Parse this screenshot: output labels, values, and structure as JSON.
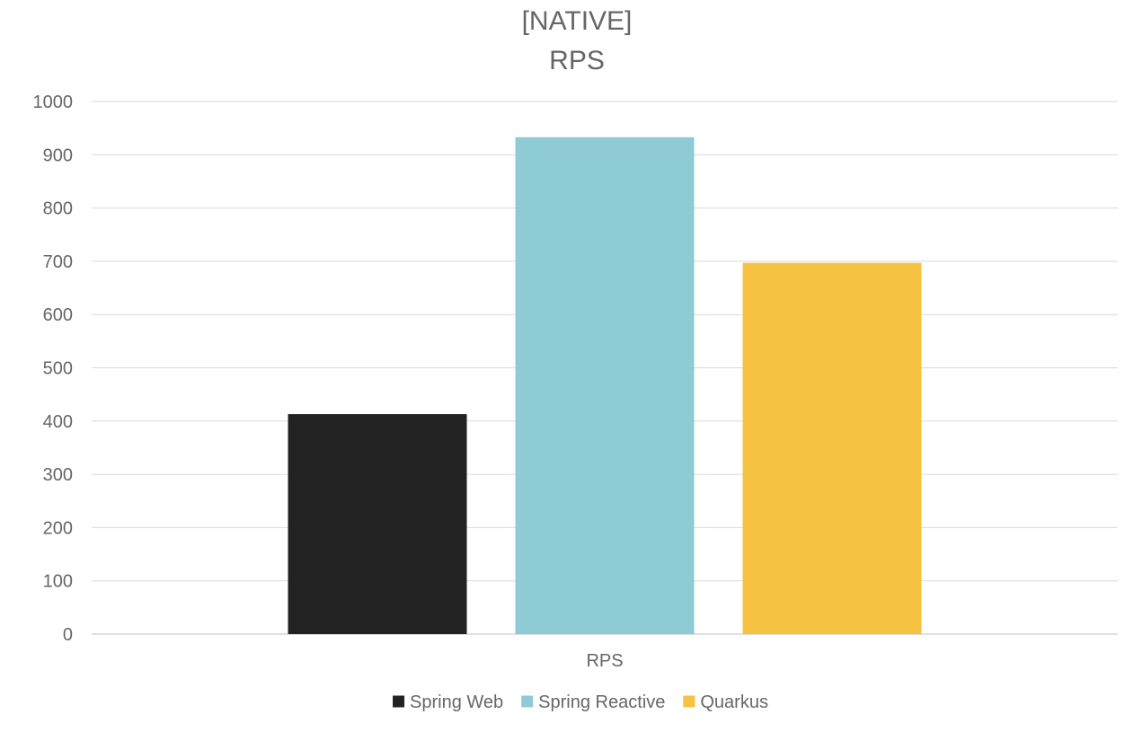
{
  "chart_data": {
    "type": "bar",
    "title_lines": [
      "[NATIVE]",
      "RPS"
    ],
    "categories": [
      "RPS"
    ],
    "series": [
      {
        "name": "Spring Web",
        "values": [
          413
        ],
        "color": "#222222"
      },
      {
        "name": "Spring Reactive",
        "values": [
          933
        ],
        "color": "#8ecbd4"
      },
      {
        "name": "Quarkus",
        "values": [
          697
        ],
        "color": "#f5c242"
      }
    ],
    "xlabel": "",
    "ylabel": "",
    "ylim": [
      0,
      1000
    ],
    "yticks": [
      0,
      100,
      200,
      300,
      400,
      500,
      600,
      700,
      800,
      900,
      1000
    ],
    "grid": true,
    "legend_position": "bottom",
    "colors": {
      "text": "#666666",
      "gridline": "#d9d9d9",
      "axis": "#bfbfbf"
    }
  }
}
